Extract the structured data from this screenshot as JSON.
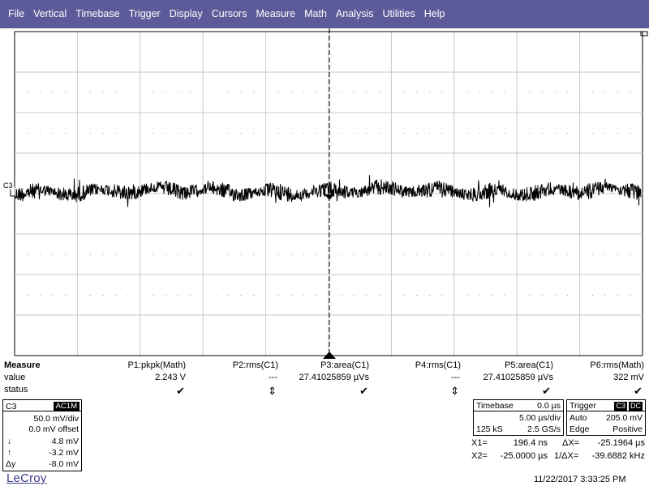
{
  "menu": [
    "File",
    "Vertical",
    "Timebase",
    "Trigger",
    "Display",
    "Cursors",
    "Measure",
    "Math",
    "Analysis",
    "Utilities",
    "Help"
  ],
  "grid": {
    "channel_label": "C3",
    "colors": {
      "background": "#ffffff",
      "grid": "#c8c8c8",
      "trace": "#000000",
      "menubar": "#5d5a9a"
    }
  },
  "measure": {
    "title": "Measure",
    "value_label": "value",
    "status_label": "status",
    "params": [
      {
        "name": "P1:pkpk(Math)",
        "value": "2.243 V",
        "status": "✔"
      },
      {
        "name": "P2:rms(C1)",
        "value": "---",
        "status": "⇕"
      },
      {
        "name": "P3:area(C1)",
        "value": "27.41025859 µVs",
        "status": "✔"
      },
      {
        "name": "P4:rms(C1)",
        "value": "---",
        "status": "⇕"
      },
      {
        "name": "P5:area(C1)",
        "value": "27.41025859 µVs",
        "status": "✔"
      },
      {
        "name": "P6:rms(Math)",
        "value": "322 mV",
        "status": "✔"
      }
    ]
  },
  "channel": {
    "name": "C3",
    "coupling": "AC1M",
    "vdiv": "50.0 mV/div",
    "offset": "0.0 mV offset",
    "down_sym": "↓",
    "down_val": "4.8 mV",
    "up_sym": "↑",
    "up_val": "-3.2 mV",
    "delta_sym": "Δy",
    "delta_val": "-8.0 mV"
  },
  "timebase": {
    "title": "Timebase",
    "delay": "0.0 µs",
    "tdiv": "5.00 µs/div",
    "samples": "125 kS",
    "rate": "2.5 GS/s"
  },
  "trigger": {
    "title": "Trigger",
    "source": "C3",
    "coupling": "DC",
    "mode": "Auto",
    "level": "205.0 mV",
    "type": "Edge",
    "slope": "Positive"
  },
  "cursors": {
    "x1_label": "X1=",
    "x1_val": "196.4 ns",
    "dx_label": "ΔX=",
    "dx_val": "-25.1964 µs",
    "x2_label": "X2=",
    "x2_val": "-25.0000 µs",
    "invdx_label": "1/ΔX=",
    "invdx_val": "-39.6882 kHz"
  },
  "brand": "LeCroy",
  "datetime": "11/22/2017 3:33:25 PM"
}
